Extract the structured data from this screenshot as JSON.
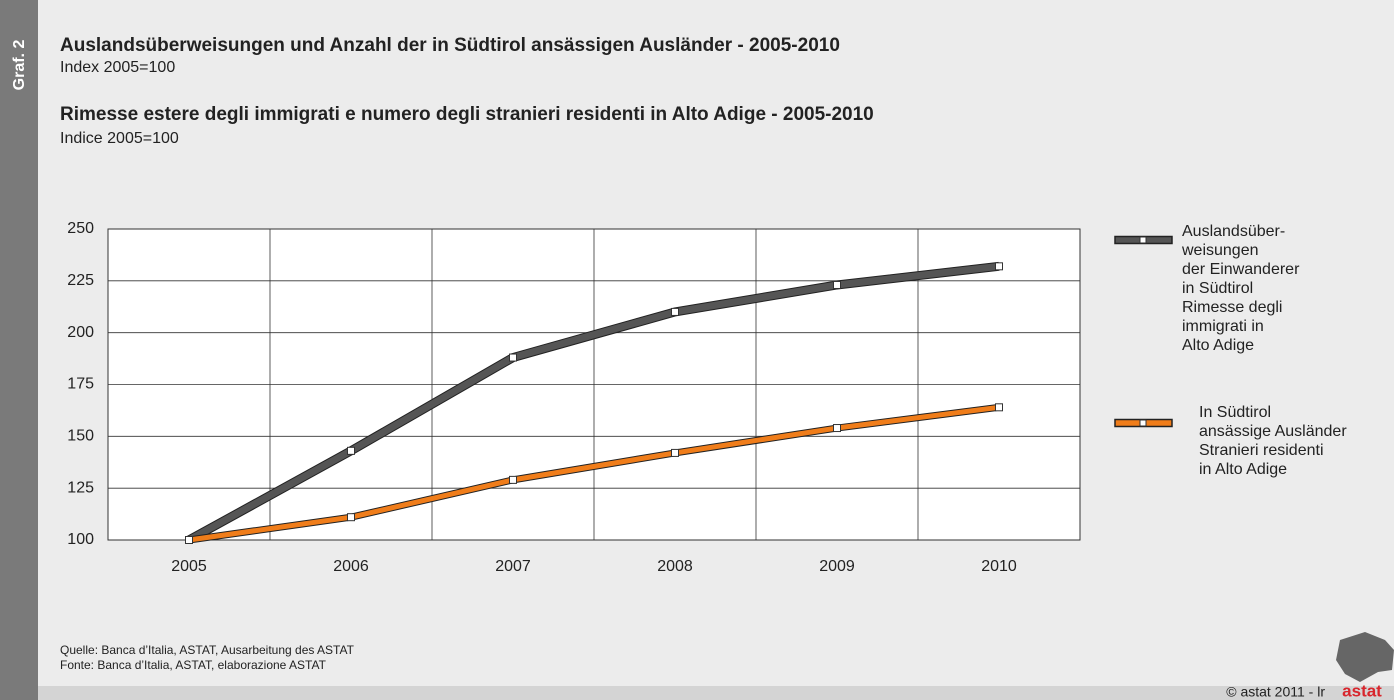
{
  "chart_data": {
    "type": "line",
    "side_label": "Graf. 2",
    "title": "Auslandsüberweisungen und Anzahl der in Südtirol ansässigen Ausländer - 2005-2010",
    "subtitle": "Index 2005=100",
    "title_it": "Rimesse estere degli immigrati e numero degli stranieri residenti in Alto Adige - 2005-2010",
    "subtitle_it": "Indice 2005=100",
    "categories": [
      "2005",
      "2006",
      "2007",
      "2008",
      "2009",
      "2010"
    ],
    "series": [
      {
        "name": "Auslandsüber-\nweisungen\nder Einwanderer\nin Südtirol\nRimesse degli\nimmigrati in\nAlto Adige",
        "color": "#555555",
        "values": [
          100,
          143,
          188,
          210,
          223,
          232
        ]
      },
      {
        "name": "In Südtirol\nansässige Ausländer\nStranieri residenti\nin Alto Adige",
        "color": "#f07d1a",
        "values": [
          100,
          111,
          129,
          142,
          154,
          164
        ]
      }
    ],
    "ylim": [
      100,
      250
    ],
    "yticks": [
      100,
      125,
      150,
      175,
      200,
      225,
      250
    ],
    "grid": true,
    "legend": "right",
    "source_de": "Quelle: Banca d’Italia, ASTAT, Ausarbeitung des ASTAT",
    "source_it": "Fonte: Banca d’Italia, ASTAT, elaborazione ASTAT",
    "copyright": "© astat 2011 - lr",
    "logo": "astat"
  }
}
